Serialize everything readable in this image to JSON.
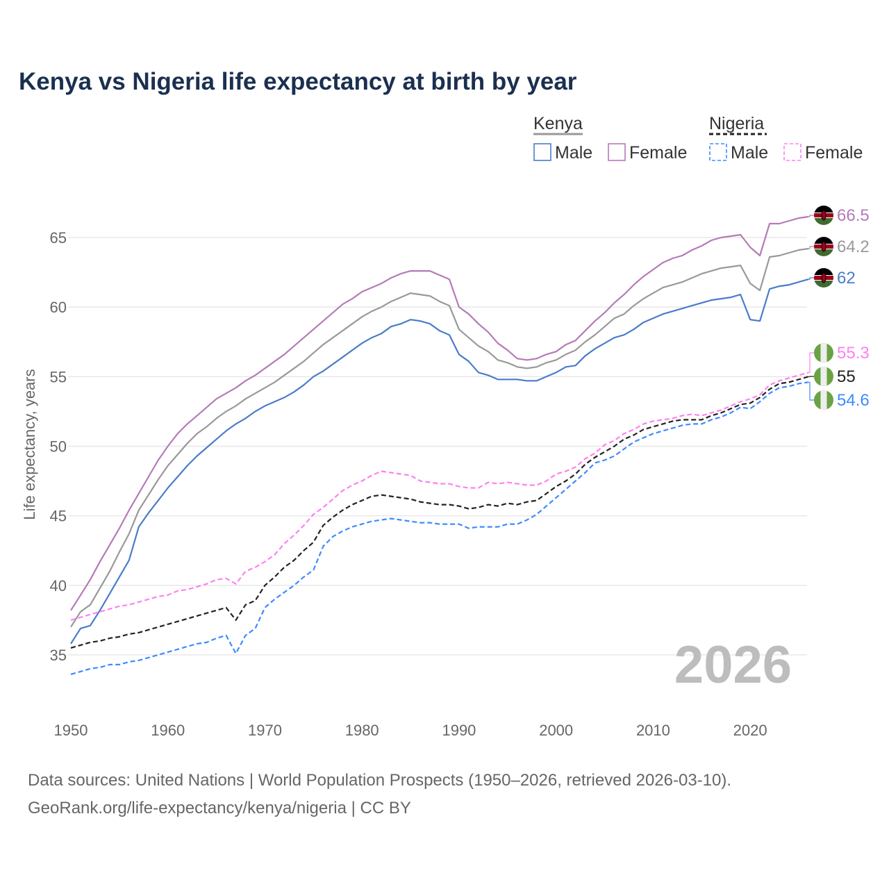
{
  "chart_data": {
    "type": "line",
    "title": "Kenya vs Nigeria life expectancy at birth by year",
    "xlabel": "",
    "ylabel": "Life expectancy, years",
    "xlim": [
      1950,
      2026
    ],
    "ylim": [
      31.3,
      68.5
    ],
    "x_ticks": [
      1950,
      1960,
      1970,
      1980,
      1990,
      2000,
      2010,
      2020
    ],
    "y_ticks": [
      35,
      40,
      45,
      50,
      55,
      60,
      65
    ],
    "grid": true,
    "legend_position": "top-right",
    "year_watermark": "2026",
    "x_start": 1950,
    "series": [
      {
        "name": "Kenya Female",
        "group": "Kenya",
        "label": "Female",
        "color": "#b57ab8",
        "dashed": false,
        "end_label": "66.5",
        "values": [
          38.2,
          39.3,
          40.4,
          41.7,
          42.9,
          44.1,
          45.4,
          46.6,
          47.8,
          49.0,
          50.0,
          50.9,
          51.6,
          52.2,
          52.8,
          53.4,
          53.8,
          54.2,
          54.7,
          55.1,
          55.6,
          56.1,
          56.6,
          57.2,
          57.8,
          58.4,
          59.0,
          59.6,
          60.2,
          60.6,
          61.1,
          61.4,
          61.7,
          62.1,
          62.4,
          62.6,
          62.6,
          62.6,
          62.3,
          62.0,
          60.0,
          59.5,
          58.8,
          58.2,
          57.4,
          56.9,
          56.3,
          56.2,
          56.3,
          56.6,
          56.8,
          57.3,
          57.6,
          58.3,
          59.0,
          59.6,
          60.3,
          60.9,
          61.6,
          62.2,
          62.7,
          63.2,
          63.5,
          63.7,
          64.1,
          64.4,
          64.8,
          65.0,
          65.1,
          65.2,
          64.3,
          63.7,
          66.0,
          66.0,
          66.2,
          66.4,
          66.5
        ]
      },
      {
        "name": "Kenya",
        "group": "Kenya",
        "label": "Both",
        "color": "#999999",
        "dashed": false,
        "end_label": "64.2",
        "values": [
          37.0,
          38.1,
          38.6,
          39.8,
          41.0,
          42.4,
          43.7,
          45.4,
          46.5,
          47.6,
          48.6,
          49.4,
          50.2,
          50.9,
          51.4,
          52.0,
          52.5,
          52.9,
          53.4,
          53.8,
          54.2,
          54.6,
          55.1,
          55.6,
          56.1,
          56.7,
          57.3,
          57.8,
          58.3,
          58.8,
          59.3,
          59.7,
          60.0,
          60.4,
          60.7,
          61.0,
          60.9,
          60.8,
          60.4,
          60.1,
          58.4,
          57.8,
          57.2,
          56.8,
          56.2,
          56.0,
          55.7,
          55.6,
          55.7,
          56.0,
          56.2,
          56.6,
          56.9,
          57.5,
          58.0,
          58.6,
          59.2,
          59.5,
          60.1,
          60.6,
          61.0,
          61.4,
          61.6,
          61.8,
          62.1,
          62.4,
          62.6,
          62.8,
          62.9,
          63.0,
          61.7,
          61.2,
          63.6,
          63.7,
          63.9,
          64.1,
          64.2
        ]
      },
      {
        "name": "Kenya Male",
        "group": "Kenya",
        "label": "Male",
        "color": "#4a7cc9",
        "dashed": false,
        "end_label": "62",
        "values": [
          35.8,
          36.9,
          37.1,
          38.2,
          39.4,
          40.6,
          41.8,
          44.2,
          45.2,
          46.1,
          47.0,
          47.8,
          48.6,
          49.3,
          49.9,
          50.5,
          51.1,
          51.6,
          52.0,
          52.5,
          52.9,
          53.2,
          53.5,
          53.9,
          54.4,
          55.0,
          55.4,
          55.9,
          56.4,
          56.9,
          57.4,
          57.8,
          58.1,
          58.6,
          58.8,
          59.1,
          59.0,
          58.8,
          58.3,
          58.0,
          56.6,
          56.1,
          55.3,
          55.1,
          54.8,
          54.8,
          54.8,
          54.7,
          54.7,
          55.0,
          55.3,
          55.7,
          55.8,
          56.5,
          57.0,
          57.4,
          57.8,
          58.0,
          58.4,
          58.9,
          59.2,
          59.5,
          59.7,
          59.9,
          60.1,
          60.3,
          60.5,
          60.6,
          60.7,
          60.9,
          59.1,
          59.0,
          61.3,
          61.5,
          61.6,
          61.8,
          62.0
        ]
      },
      {
        "name": "Nigeria Female",
        "group": "Nigeria",
        "label": "Female",
        "color": "#ff80f0",
        "dashed": true,
        "end_label": "55.3",
        "values": [
          37.5,
          37.7,
          37.9,
          38.1,
          38.3,
          38.5,
          38.6,
          38.8,
          39.0,
          39.2,
          39.3,
          39.6,
          39.7,
          39.9,
          40.1,
          40.4,
          40.5,
          40.1,
          41.0,
          41.3,
          41.7,
          42.2,
          43.0,
          43.6,
          44.3,
          45.1,
          45.6,
          46.2,
          46.8,
          47.2,
          47.5,
          47.9,
          48.2,
          48.1,
          48.0,
          47.9,
          47.5,
          47.4,
          47.3,
          47.3,
          47.1,
          47.0,
          47.0,
          47.4,
          47.3,
          47.4,
          47.3,
          47.2,
          47.2,
          47.5,
          48.0,
          48.2,
          48.5,
          49.1,
          49.5,
          50.1,
          50.4,
          50.9,
          51.2,
          51.6,
          51.8,
          51.9,
          52.0,
          52.2,
          52.3,
          52.2,
          52.4,
          52.6,
          52.9,
          53.2,
          53.4,
          53.7,
          54.4,
          54.7,
          54.9,
          55.1,
          55.3
        ]
      },
      {
        "name": "Nigeria",
        "group": "Nigeria",
        "label": "Both",
        "color": "#222222",
        "dashed": true,
        "end_label": "55",
        "values": [
          35.5,
          35.7,
          35.9,
          36.0,
          36.2,
          36.3,
          36.5,
          36.6,
          36.8,
          37.0,
          37.2,
          37.4,
          37.6,
          37.8,
          38.0,
          38.2,
          38.4,
          37.5,
          38.6,
          38.9,
          40.0,
          40.6,
          41.3,
          41.8,
          42.5,
          43.1,
          44.3,
          44.9,
          45.4,
          45.8,
          46.1,
          46.4,
          46.5,
          46.4,
          46.3,
          46.2,
          46.0,
          45.9,
          45.8,
          45.8,
          45.7,
          45.5,
          45.6,
          45.8,
          45.7,
          45.9,
          45.8,
          46.0,
          46.1,
          46.6,
          47.1,
          47.5,
          48.0,
          48.7,
          49.2,
          49.6,
          50.0,
          50.5,
          50.8,
          51.2,
          51.4,
          51.6,
          51.8,
          51.9,
          51.9,
          51.9,
          52.2,
          52.4,
          52.7,
          53.0,
          53.1,
          53.5,
          54.1,
          54.5,
          54.6,
          54.8,
          55.0
        ]
      },
      {
        "name": "Nigeria Male",
        "group": "Nigeria",
        "label": "Male",
        "color": "#3d8bff",
        "dashed": true,
        "end_label": "54.6",
        "values": [
          33.6,
          33.8,
          34.0,
          34.1,
          34.3,
          34.3,
          34.5,
          34.6,
          34.8,
          35.0,
          35.2,
          35.4,
          35.6,
          35.8,
          35.9,
          36.2,
          36.4,
          35.1,
          36.4,
          36.9,
          38.4,
          39.0,
          39.5,
          40.0,
          40.6,
          41.1,
          42.8,
          43.5,
          43.9,
          44.2,
          44.4,
          44.6,
          44.7,
          44.8,
          44.7,
          44.6,
          44.5,
          44.5,
          44.4,
          44.4,
          44.4,
          44.1,
          44.2,
          44.2,
          44.2,
          44.4,
          44.4,
          44.7,
          45.1,
          45.7,
          46.3,
          46.9,
          47.5,
          48.1,
          48.8,
          49.0,
          49.3,
          49.8,
          50.3,
          50.6,
          50.9,
          51.1,
          51.3,
          51.5,
          51.6,
          51.6,
          51.9,
          52.1,
          52.4,
          52.8,
          52.7,
          53.2,
          53.8,
          54.2,
          54.3,
          54.5,
          54.6
        ]
      }
    ]
  },
  "legend": {
    "kenya": "Kenya",
    "nigeria": "Nigeria",
    "male": "Male",
    "female": "Female"
  },
  "footer": {
    "line1": "Data sources: United Nations | World Population Prospects (1950–2026, retrieved 2026-03-10).",
    "line2": "GeoRank.org/life-expectancy/kenya/nigeria | CC BY"
  }
}
